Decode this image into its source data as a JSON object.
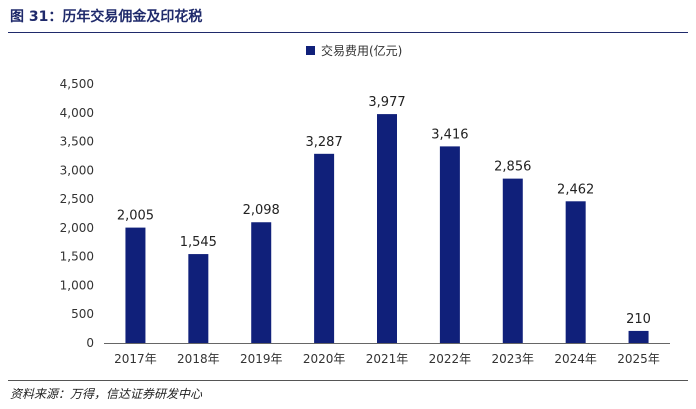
{
  "figure_title": "图 31：历年交易佣金及印花税",
  "source": "资料来源：万得，信达证券研发中心",
  "colors": {
    "bar": "#10207a",
    "title": "#1f2a6b"
  },
  "chart_data": {
    "type": "bar",
    "categories": [
      "2017年",
      "2018年",
      "2019年",
      "2020年",
      "2021年",
      "2022年",
      "2023年",
      "2024年",
      "2025年"
    ],
    "series": [
      {
        "name": "交易费用(亿元)",
        "values": [
          2005,
          1545,
          2098,
          3287,
          3977,
          3416,
          2856,
          2462,
          210
        ]
      }
    ],
    "data_labels": [
      "2,005",
      "1,545",
      "2,098",
      "3,287",
      "3,977",
      "3,416",
      "2,856",
      "2,462",
      "210"
    ],
    "y_ticks": [
      "0",
      "500",
      "1,000",
      "1,500",
      "2,000",
      "2,500",
      "3,000",
      "3,500",
      "4,000",
      "4,500"
    ],
    "ylim": [
      0,
      4500
    ],
    "legend_position": "top-center",
    "grid": false
  }
}
